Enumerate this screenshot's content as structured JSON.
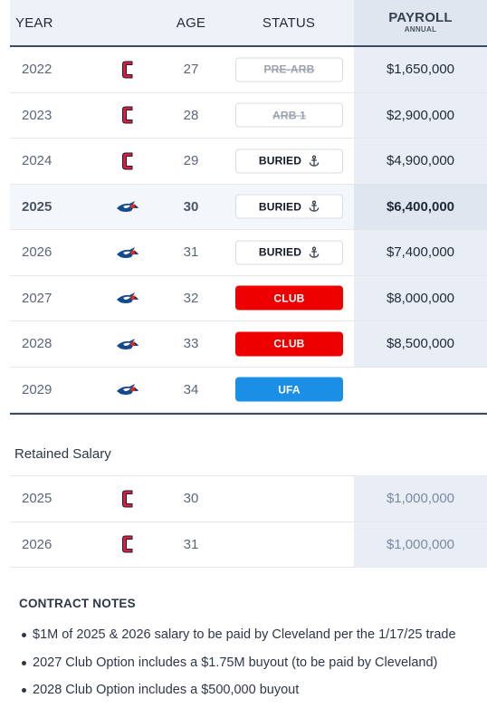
{
  "header": {
    "year": "YEAR",
    "age": "AGE",
    "status": "STATUS",
    "payroll": "PAYROLL",
    "payroll_sub": "ANNUAL"
  },
  "rows": [
    {
      "year": "2022",
      "team": "cleveland-guardians",
      "age": "27",
      "status": "PRE-ARB",
      "status_style": "strikethrough",
      "payroll": "$1,650,000"
    },
    {
      "year": "2023",
      "team": "cleveland-guardians",
      "age": "28",
      "status": "ARB 1",
      "status_style": "strikethrough",
      "payroll": "$2,900,000"
    },
    {
      "year": "2024",
      "team": "cleveland-guardians",
      "age": "29",
      "status": "BURIED",
      "status_style": "buried",
      "payroll": "$4,900,000"
    },
    {
      "year": "2025",
      "team": "toronto-blue-jays",
      "age": "30",
      "status": "BURIED",
      "status_style": "buried",
      "payroll": "$6,400,000",
      "current": true
    },
    {
      "year": "2026",
      "team": "toronto-blue-jays",
      "age": "31",
      "status": "BURIED",
      "status_style": "buried",
      "payroll": "$7,400,000"
    },
    {
      "year": "2027",
      "team": "toronto-blue-jays",
      "age": "32",
      "status": "CLUB",
      "status_style": "club",
      "payroll": "$8,000,000"
    },
    {
      "year": "2028",
      "team": "toronto-blue-jays",
      "age": "33",
      "status": "CLUB",
      "status_style": "club",
      "payroll": "$8,500,000"
    },
    {
      "year": "2029",
      "team": "toronto-blue-jays",
      "age": "34",
      "status": "UFA",
      "status_style": "ufa",
      "payroll": ""
    }
  ],
  "retained": {
    "title": "Retained Salary",
    "rows": [
      {
        "year": "2025",
        "team": "cleveland-guardians",
        "age": "30",
        "payroll": "$1,000,000"
      },
      {
        "year": "2026",
        "team": "cleveland-guardians",
        "age": "31",
        "payroll": "$1,000,000"
      }
    ]
  },
  "notes": {
    "title": "CONTRACT NOTES",
    "items": [
      "$1M of 2025 & 2026 salary to be paid by Cleveland per the 1/17/25 trade",
      "2027 Club Option includes a $1.75M buyout (to be paid by Cleveland)",
      "2028 Club Option includes a $500,000 buyout"
    ]
  },
  "colors": {
    "club": "#ee0000",
    "ufa": "#1b8fe6",
    "header_bg": "#eef2f8",
    "payroll_bg": "#e9eef6",
    "cleveland_red": "#e31937",
    "jays_blue": "#134a8e"
  },
  "icons": {
    "buried": "anchor-icon",
    "cleveland": "cleveland-guardians-logo-icon",
    "toronto": "toronto-blue-jays-logo-icon"
  }
}
